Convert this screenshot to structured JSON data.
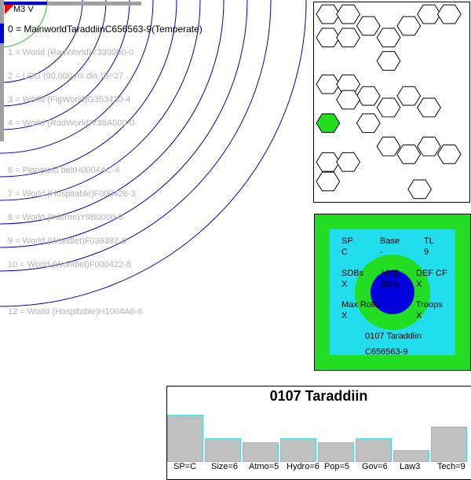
{
  "star": {
    "label": "M3 V",
    "color": "#ff0000"
  },
  "orbits": [
    {
      "label": "0 = MainworldTaraddiinC656563-9(Temperate)",
      "main": true
    },
    {
      "label": "1 = World  (RadWorld)Y330000-0"
    },
    {
      "label": "2 = LGG (90,000 mi dia.)S=27"
    },
    {
      "label": "3 = World  (FigWorld)G353430-4"
    },
    {
      "label": "4 = World  (RadWorld)Y38A000-0"
    },
    {
      "label": "6 = Planetoid beltH0004AC-4"
    },
    {
      "label": "7 = World  (Hospitable)F000426-3"
    },
    {
      "label": "8 = World  (Inferno)Y9B0000-0"
    },
    {
      "label": "9 = World  (Worldlet)F036387-6"
    },
    {
      "label": "10 = World  (Worldlet)F000422-8"
    },
    {
      "label": "12 = World  (Hospitable)H1004A6-6"
    }
  ],
  "defense": {
    "sp_label": "SP",
    "sp_value": "C",
    "base_label": "Base",
    "base_value": "-",
    "tl_label": "TL",
    "tl_value": "9",
    "sdb_label": "SDBs",
    "sdb_value": "X",
    "hyd_label": "HYD",
    "hyd_value": "60%",
    "def_label": "DEF CF",
    "def_value": "X",
    "maxrolls_label": "Max Rolls",
    "maxrolls_value": "X",
    "troops_label": "Troops",
    "troops_value": "X",
    "name": "0107 Taraddiin",
    "uwp": "C656563-9"
  },
  "uwp_chart": {
    "title": "0107 Taraddiin",
    "bars": [
      {
        "label": "SP=C",
        "value": 12
      },
      {
        "label": "Size=6",
        "value": 6
      },
      {
        "label": "Atmo=5",
        "value": 5
      },
      {
        "label": "Hydro=6",
        "value": 6
      },
      {
        "label": "Pop=5",
        "value": 5
      },
      {
        "label": "Gov=6",
        "value": 6
      },
      {
        "label": "Law3",
        "value": 3
      },
      {
        "label": "Tech=9",
        "value": 9
      }
    ]
  },
  "colors": {
    "orbit": "#0000cc",
    "ocean": "#22ddee",
    "land": "#22dd22",
    "highlight_hex": "#22dd22"
  }
}
